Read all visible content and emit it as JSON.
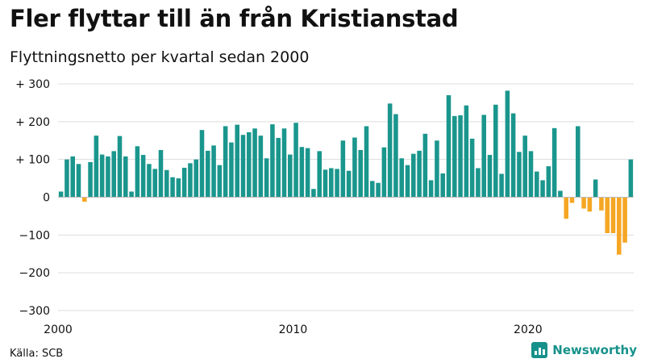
{
  "title": "Fler flyttar till än från Kristianstad",
  "subtitle": "Flyttningsnetto per kvartal sedan 2000",
  "source": "Källa: SCB",
  "brand": "Newsworthy",
  "colors": {
    "positive": "#1a968d",
    "negative": "#f5a623",
    "grid": "#dddddd",
    "text": "#111111",
    "brand": "#16918a"
  },
  "chart_data": {
    "type": "bar",
    "title": "Fler flyttar till än från Kristianstad",
    "subtitle": "Flyttningsnetto per kvartal sedan 2000",
    "xlabel": "",
    "ylabel": "",
    "ylim": [
      -300,
      300
    ],
    "yticks": [
      300,
      200,
      100,
      0,
      -100,
      -200,
      -300
    ],
    "ytick_labels": [
      "+ 300",
      "+ 200",
      "+ 100",
      "0",
      "−100",
      "−200",
      "−300"
    ],
    "xtick_labels": [
      "2000",
      "2010",
      "2020"
    ],
    "start_period": "2000 Q1",
    "grid": true,
    "values": [
      15,
      100,
      108,
      88,
      -12,
      93,
      163,
      113,
      108,
      122,
      162,
      108,
      15,
      135,
      112,
      88,
      75,
      125,
      72,
      53,
      50,
      78,
      90,
      100,
      178,
      123,
      137,
      85,
      188,
      145,
      192,
      165,
      172,
      182,
      163,
      103,
      193,
      157,
      182,
      113,
      197,
      133,
      130,
      22,
      122,
      73,
      77,
      75,
      150,
      70,
      158,
      125,
      188,
      43,
      38,
      132,
      248,
      220,
      103,
      85,
      115,
      123,
      168,
      45,
      150,
      63,
      270,
      215,
      217,
      243,
      155,
      77,
      218,
      112,
      245,
      62,
      282,
      222,
      120,
      163,
      122,
      68,
      45,
      82,
      183,
      17,
      -57,
      -15,
      188,
      -30,
      -38,
      47,
      -35,
      -95,
      -95,
      -152,
      -120,
      100
    ]
  }
}
